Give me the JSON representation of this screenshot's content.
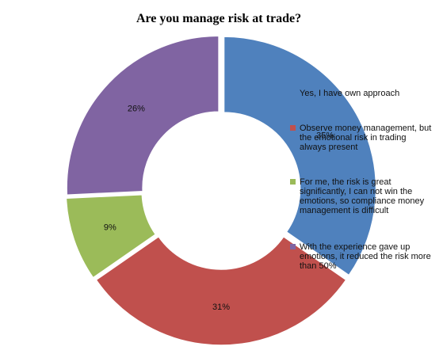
{
  "chart_data": {
    "type": "donut",
    "title": "Are you manage risk at trade?",
    "categories": [
      "Yes, I have own approach",
      "Observe money management, but the emotional risk in trading always present",
      "For me, the risk is great significantly, I can not win the emotions, so compliance money management is difficult",
      "With the experience gave up emotions, it reduced the risk more than 50%"
    ],
    "values": [
      35,
      31,
      9,
      26
    ],
    "value_labels": [
      "35%",
      "31%",
      "9%",
      "26%"
    ],
    "colors": [
      "#4f81bd",
      "#c0504d",
      "#9bbb59",
      "#8064a2"
    ],
    "legend": "right"
  }
}
